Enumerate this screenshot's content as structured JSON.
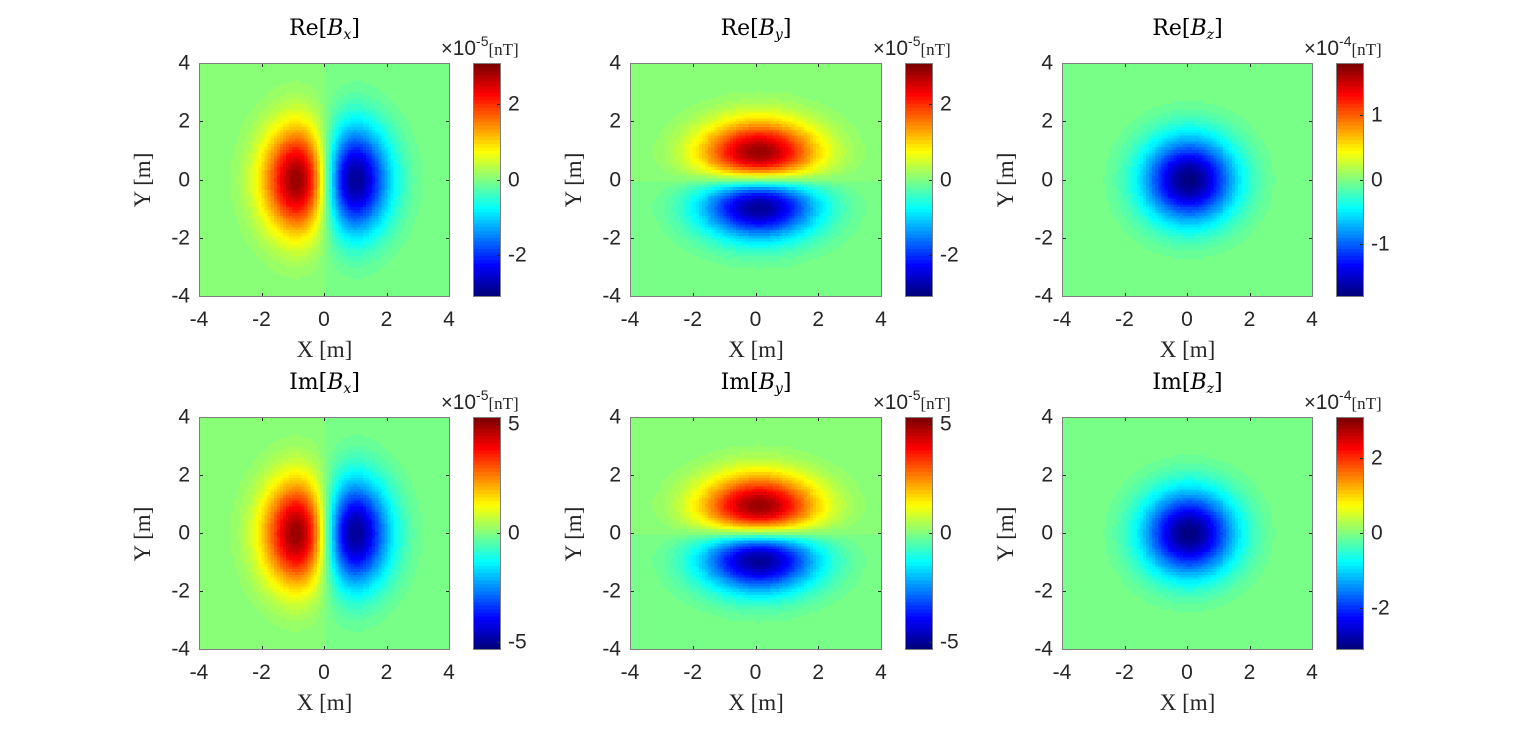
{
  "figure": {
    "axis_range": [
      -4,
      4
    ],
    "ticks": [
      -4,
      -2,
      0,
      2,
      4
    ],
    "xlabel": "X [m]",
    "ylabel": "Y [m]",
    "colormap": "jet",
    "colorbar_unit": "[nT]"
  },
  "chart_data": [
    {
      "type": "heatmap",
      "id": "re_bx",
      "title": "Re[Bx]",
      "title_prefix": "Re",
      "component": "x",
      "xlabel": "X [m]",
      "ylabel": "Y [m]",
      "xlim": [
        -4,
        4
      ],
      "ylim": [
        -4,
        4
      ],
      "colorbar": {
        "exponent": "-5",
        "unit": "[nT]",
        "clim": [
          -3.1,
          3.1
        ],
        "ticks": [
          -2,
          0,
          2
        ]
      },
      "features": [
        {
          "kind": "max",
          "x": -1.0,
          "y": 0,
          "value": 3.1
        },
        {
          "kind": "min",
          "x": 1.1,
          "y": 0,
          "value": -3.1
        }
      ],
      "pattern": "x-dipole"
    },
    {
      "type": "heatmap",
      "id": "re_by",
      "title": "Re[By]",
      "title_prefix": "Re",
      "component": "y",
      "xlabel": "X [m]",
      "ylabel": "Y [m]",
      "xlim": [
        -4,
        4
      ],
      "ylim": [
        -4,
        4
      ],
      "colorbar": {
        "exponent": "-5",
        "unit": "[nT]",
        "clim": [
          -3.1,
          3.1
        ],
        "ticks": [
          -2,
          0,
          2
        ]
      },
      "features": [
        {
          "kind": "max",
          "x": 0.1,
          "y": 1.0,
          "value": 3.1
        },
        {
          "kind": "min",
          "x": 0.1,
          "y": -1.0,
          "value": -3.1
        }
      ],
      "pattern": "y-dipole"
    },
    {
      "type": "heatmap",
      "id": "re_bz",
      "title": "Re[Bz]",
      "title_prefix": "Re",
      "component": "z",
      "xlabel": "X [m]",
      "ylabel": "Y [m]",
      "xlim": [
        -4,
        4
      ],
      "ylim": [
        -4,
        4
      ],
      "colorbar": {
        "exponent": "-4",
        "unit": "[nT]",
        "clim": [
          -1.8,
          1.8
        ],
        "ticks": [
          -1,
          0,
          1
        ]
      },
      "features": [
        {
          "kind": "min",
          "x": 0,
          "y": 0,
          "value": -1.8
        }
      ],
      "pattern": "z-monopole"
    },
    {
      "type": "heatmap",
      "id": "im_bx",
      "title": "Im[Bx]",
      "title_prefix": "Im",
      "component": "x",
      "xlabel": "X [m]",
      "ylabel": "Y [m]",
      "xlim": [
        -4,
        4
      ],
      "ylim": [
        -4,
        4
      ],
      "colorbar": {
        "exponent": "-5",
        "unit": "[nT]",
        "clim": [
          -5.3,
          5.3
        ],
        "ticks": [
          -5,
          0,
          5
        ]
      },
      "features": [
        {
          "kind": "max",
          "x": -1.0,
          "y": 0,
          "value": 5.3
        },
        {
          "kind": "min",
          "x": 1.1,
          "y": 0,
          "value": -5.3
        }
      ],
      "pattern": "x-dipole"
    },
    {
      "type": "heatmap",
      "id": "im_by",
      "title": "Im[By]",
      "title_prefix": "Im",
      "component": "y",
      "xlabel": "X [m]",
      "ylabel": "Y [m]",
      "xlim": [
        -4,
        4
      ],
      "ylim": [
        -4,
        4
      ],
      "colorbar": {
        "exponent": "-5",
        "unit": "[nT]",
        "clim": [
          -5.3,
          5.3
        ],
        "ticks": [
          -5,
          0,
          5
        ]
      },
      "features": [
        {
          "kind": "max",
          "x": 0.1,
          "y": 1.0,
          "value": 5.3
        },
        {
          "kind": "min",
          "x": 0.1,
          "y": -1.0,
          "value": -5.3
        }
      ],
      "pattern": "y-dipole"
    },
    {
      "type": "heatmap",
      "id": "im_bz",
      "title": "Im[Bz]",
      "title_prefix": "Im",
      "component": "z",
      "xlabel": "X [m]",
      "ylabel": "Y [m]",
      "xlim": [
        -4,
        4
      ],
      "ylim": [
        -4,
        4
      ],
      "colorbar": {
        "exponent": "-4",
        "unit": "[nT]",
        "clim": [
          -3.1,
          3.1
        ],
        "ticks": [
          -2,
          0,
          2
        ]
      },
      "features": [
        {
          "kind": "min",
          "x": 0,
          "y": 0,
          "value": -3.1
        }
      ],
      "pattern": "z-monopole"
    }
  ]
}
